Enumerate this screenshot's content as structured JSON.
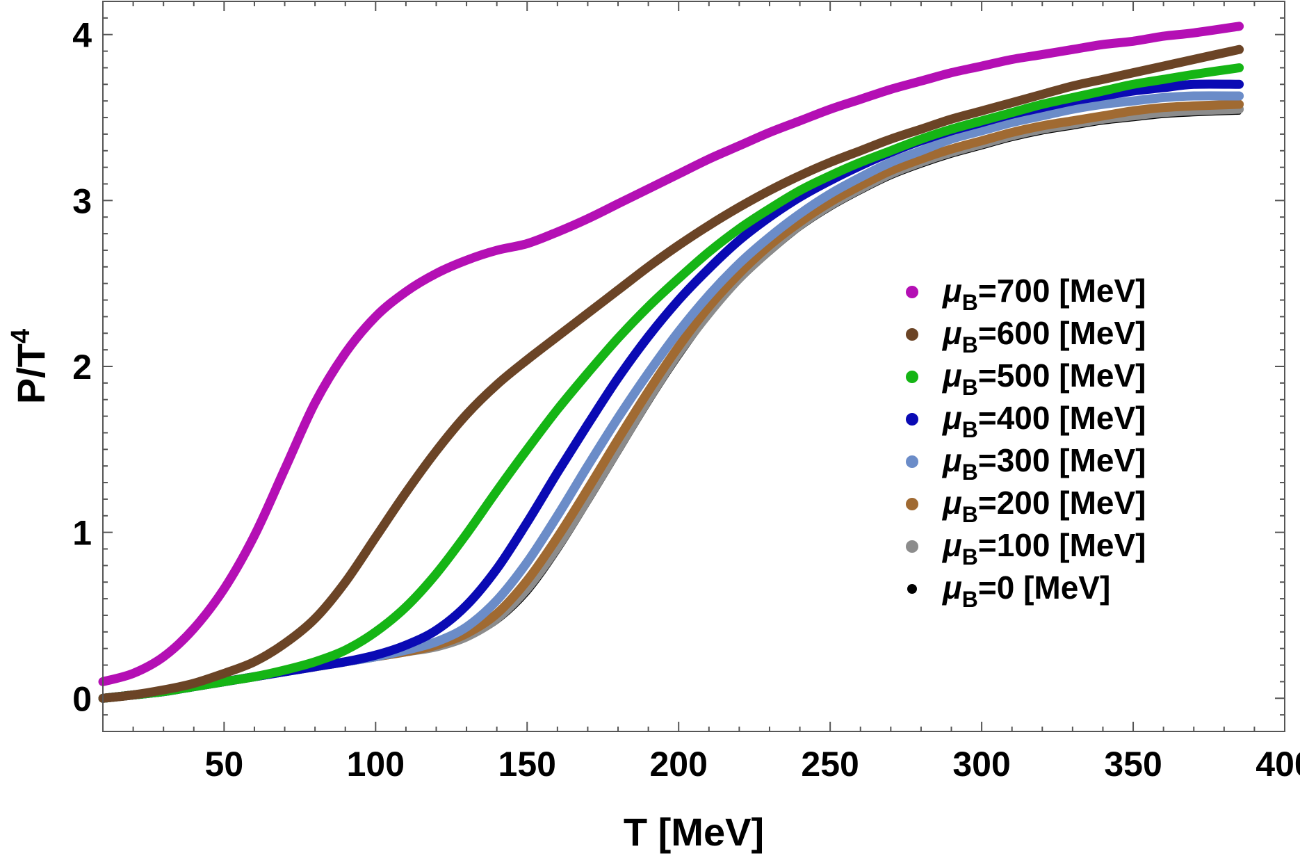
{
  "chart_data": {
    "type": "line",
    "title": "",
    "xlabel": "T [MeV]",
    "ylabel_main": "P/T",
    "ylabel_sup": "4",
    "xlim": [
      10,
      400
    ],
    "ylim": [
      -0.2,
      4.2
    ],
    "xticks": [
      50,
      100,
      150,
      200,
      250,
      300,
      350,
      400
    ],
    "yticks": [
      0,
      1,
      2,
      3,
      4
    ],
    "xtick_labels": [
      "50",
      "100",
      "150",
      "200",
      "250",
      "300",
      "350",
      "400"
    ],
    "ytick_labels": [
      "0",
      "1",
      "2",
      "3",
      "4"
    ],
    "grid": false,
    "legend_position": "right",
    "x": [
      10,
      20,
      30,
      40,
      50,
      60,
      70,
      80,
      90,
      100,
      110,
      120,
      130,
      140,
      150,
      160,
      170,
      180,
      190,
      200,
      210,
      220,
      230,
      240,
      250,
      260,
      270,
      280,
      290,
      300,
      310,
      320,
      330,
      340,
      350,
      360,
      370,
      385
    ],
    "series": [
      {
        "name": "700",
        "legend_prefix": "μ",
        "legend_sub": "B",
        "legend_suffix": "=700 [MeV]",
        "color": "#b40fb4",
        "values": [
          0.1,
          0.15,
          0.25,
          0.42,
          0.66,
          0.98,
          1.38,
          1.78,
          2.08,
          2.3,
          2.45,
          2.56,
          2.64,
          2.7,
          2.74,
          2.81,
          2.89,
          2.98,
          3.07,
          3.16,
          3.25,
          3.33,
          3.41,
          3.48,
          3.55,
          3.61,
          3.67,
          3.72,
          3.77,
          3.81,
          3.85,
          3.88,
          3.91,
          3.94,
          3.96,
          3.99,
          4.01,
          4.05
        ]
      },
      {
        "name": "600",
        "legend_prefix": "μ",
        "legend_sub": "B",
        "legend_suffix": "=600 [MeV]",
        "color": "#6b4426",
        "values": [
          0.0,
          0.02,
          0.05,
          0.09,
          0.15,
          0.22,
          0.33,
          0.48,
          0.7,
          0.97,
          1.24,
          1.49,
          1.71,
          1.89,
          2.04,
          2.18,
          2.32,
          2.46,
          2.6,
          2.73,
          2.85,
          2.96,
          3.06,
          3.15,
          3.23,
          3.3,
          3.37,
          3.43,
          3.49,
          3.54,
          3.59,
          3.64,
          3.69,
          3.73,
          3.77,
          3.81,
          3.85,
          3.91
        ]
      },
      {
        "name": "500",
        "legend_prefix": "μ",
        "legend_sub": "B",
        "legend_suffix": "=500 [MeV]",
        "color": "#15b515",
        "values": [
          0.0,
          0.02,
          0.04,
          0.07,
          0.1,
          0.13,
          0.17,
          0.22,
          0.29,
          0.4,
          0.55,
          0.75,
          0.99,
          1.25,
          1.5,
          1.74,
          1.96,
          2.17,
          2.36,
          2.53,
          2.69,
          2.83,
          2.95,
          3.06,
          3.15,
          3.23,
          3.3,
          3.37,
          3.43,
          3.48,
          3.53,
          3.58,
          3.62,
          3.66,
          3.7,
          3.73,
          3.76,
          3.8
        ]
      },
      {
        "name": "400",
        "legend_prefix": "μ",
        "legend_sub": "B",
        "legend_suffix": "=400 [MeV]",
        "color": "#0a0ab4",
        "values": [
          0.0,
          0.02,
          0.04,
          0.07,
          0.1,
          0.13,
          0.16,
          0.19,
          0.22,
          0.26,
          0.32,
          0.41,
          0.56,
          0.78,
          1.06,
          1.36,
          1.65,
          1.93,
          2.18,
          2.4,
          2.59,
          2.76,
          2.9,
          3.02,
          3.12,
          3.21,
          3.29,
          3.36,
          3.42,
          3.47,
          3.52,
          3.56,
          3.6,
          3.63,
          3.66,
          3.68,
          3.7,
          3.7
        ]
      },
      {
        "name": "300",
        "legend_prefix": "μ",
        "legend_sub": "B",
        "legend_suffix": "=300 [MeV]",
        "color": "#6b8cc8",
        "values": [
          0.0,
          0.02,
          0.04,
          0.07,
          0.1,
          0.13,
          0.16,
          0.19,
          0.22,
          0.25,
          0.29,
          0.34,
          0.43,
          0.59,
          0.82,
          1.1,
          1.4,
          1.69,
          1.96,
          2.21,
          2.43,
          2.62,
          2.78,
          2.92,
          3.04,
          3.14,
          3.23,
          3.3,
          3.37,
          3.42,
          3.47,
          3.51,
          3.55,
          3.58,
          3.6,
          3.62,
          3.63,
          3.63
        ]
      },
      {
        "name": "200",
        "legend_prefix": "μ",
        "legend_sub": "B",
        "legend_suffix": "=200 [MeV]",
        "color": "#a06a32",
        "values": [
          0.0,
          0.02,
          0.04,
          0.07,
          0.1,
          0.13,
          0.16,
          0.19,
          0.22,
          0.25,
          0.28,
          0.32,
          0.39,
          0.51,
          0.71,
          0.97,
          1.26,
          1.56,
          1.85,
          2.12,
          2.36,
          2.56,
          2.73,
          2.87,
          2.99,
          3.09,
          3.18,
          3.25,
          3.31,
          3.36,
          3.41,
          3.45,
          3.48,
          3.51,
          3.54,
          3.56,
          3.57,
          3.58
        ]
      },
      {
        "name": "100",
        "legend_prefix": "μ",
        "legend_sub": "B",
        "legend_suffix": "=100 [MeV]",
        "color": "#8c8c8c",
        "values": [
          0.0,
          0.02,
          0.04,
          0.07,
          0.1,
          0.13,
          0.16,
          0.19,
          0.22,
          0.25,
          0.28,
          0.31,
          0.37,
          0.48,
          0.66,
          0.91,
          1.2,
          1.5,
          1.8,
          2.08,
          2.32,
          2.53,
          2.7,
          2.85,
          2.97,
          3.07,
          3.16,
          3.23,
          3.29,
          3.34,
          3.39,
          3.43,
          3.46,
          3.49,
          3.51,
          3.53,
          3.54,
          3.55
        ]
      },
      {
        "name": "0",
        "legend_prefix": "μ",
        "legend_sub": "B",
        "legend_suffix": "=0 [MeV]",
        "color": "#000000",
        "values": [
          0.0,
          0.02,
          0.04,
          0.07,
          0.1,
          0.13,
          0.16,
          0.19,
          0.22,
          0.25,
          0.28,
          0.31,
          0.36,
          0.46,
          0.63,
          0.88,
          1.17,
          1.47,
          1.77,
          2.05,
          2.3,
          2.51,
          2.68,
          2.83,
          2.95,
          3.05,
          3.14,
          3.21,
          3.27,
          3.32,
          3.37,
          3.41,
          3.44,
          3.47,
          3.49,
          3.51,
          3.52,
          3.53
        ]
      }
    ]
  }
}
